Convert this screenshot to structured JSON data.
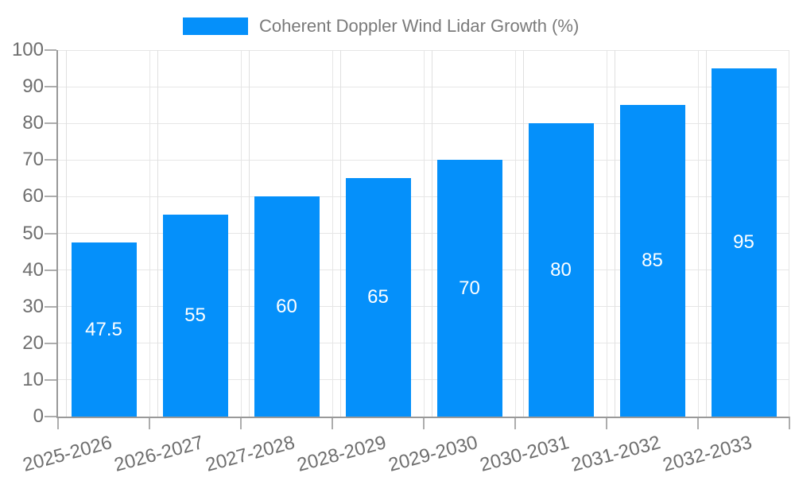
{
  "legend": {
    "series_label": "Coherent Doppler Wind Lidar Growth (%)"
  },
  "chart_data": {
    "type": "bar",
    "title": "Coherent Doppler Wind Lidar Growth (%)",
    "categories": [
      "2025-2026",
      "2026-2027",
      "2027-2028",
      "2028-2029",
      "2029-2030",
      "2030-2031",
      "2031-2032",
      "2032-2033"
    ],
    "values": [
      47.5,
      55,
      60,
      65,
      70,
      80,
      85,
      95
    ],
    "value_labels": [
      "47.5",
      "55",
      "60",
      "65",
      "70",
      "80",
      "85",
      "95"
    ],
    "xlabel": "",
    "ylabel": "",
    "ylim": [
      0,
      100
    ],
    "yticks": [
      0,
      10,
      20,
      30,
      40,
      50,
      60,
      70,
      80,
      90,
      100
    ],
    "grid": true,
    "legend_position": "top",
    "x_label_rotation_deg": -15,
    "colors": {
      "bar": "#0590FA",
      "bar_value_label": "#FFFFFF",
      "axis_line": "#999999",
      "grid_line": "#E6E6E6",
      "grid_line_secondary": "#E0E0E0",
      "tick_mark": "#ADADAD",
      "tick_label": "#6E6E6E",
      "legend_text": "#7A7A7A"
    }
  }
}
